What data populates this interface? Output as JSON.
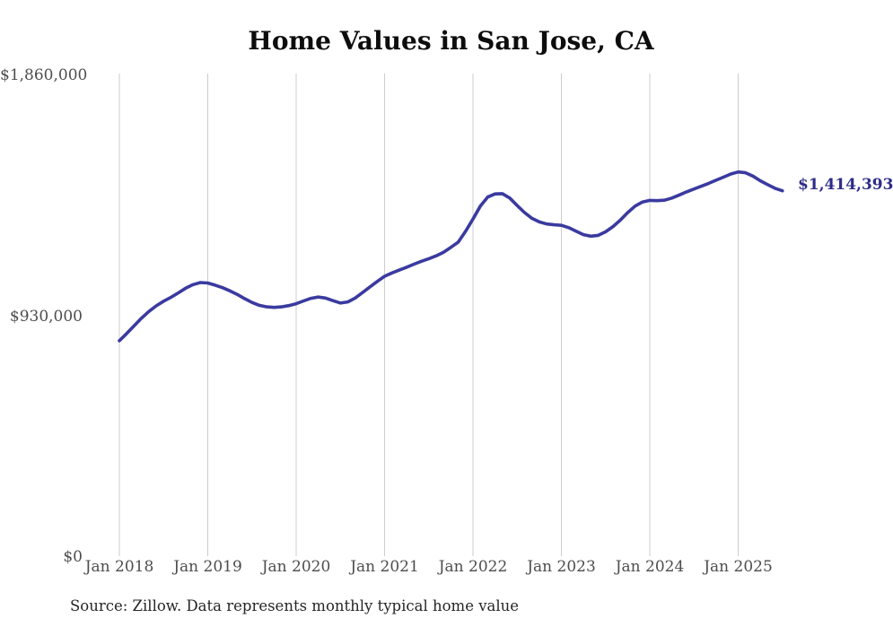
{
  "page": {
    "title": "Home Values in San Jose, CA",
    "source": "Source: Zillow. Data represents monthly typical home value",
    "end_label": "$1,414,393"
  },
  "colors": {
    "line": "#3a3aa0",
    "annotation": "#2d2d8a",
    "grid": "#cccccc",
    "axis_text": "#4d4d4d",
    "title_text": "#0d0d0d",
    "source_text": "#262626",
    "background": "#ffffff"
  },
  "chart_data": {
    "type": "line",
    "title": "Home Values in San Jose, CA",
    "xlabel": "",
    "ylabel": "",
    "ylim": [
      0,
      1860000
    ],
    "grid": "vertical-only",
    "legend": "none",
    "series_name": "Typical home value (USD)",
    "latest_value": 1414393,
    "end_annotation": "$1,414,393",
    "y_ticks": [
      {
        "label": "$0",
        "value": 0
      },
      {
        "label": "$930,000",
        "value": 930000
      },
      {
        "label": "$1,860,000",
        "value": 1860000
      }
    ],
    "x_ticks": [
      {
        "label": "Jan 2018",
        "month_index": 0
      },
      {
        "label": "Jan 2019",
        "month_index": 12
      },
      {
        "label": "Jan 2020",
        "month_index": 24
      },
      {
        "label": "Jan 2021",
        "month_index": 36
      },
      {
        "label": "Jan 2022",
        "month_index": 48
      },
      {
        "label": "Jan 2023",
        "month_index": 60
      },
      {
        "label": "Jan 2024",
        "month_index": 72
      },
      {
        "label": "Jan 2025",
        "month_index": 84
      }
    ],
    "x": [
      "2018-01",
      "2018-02",
      "2018-03",
      "2018-04",
      "2018-05",
      "2018-06",
      "2018-07",
      "2018-08",
      "2018-09",
      "2018-10",
      "2018-11",
      "2018-12",
      "2019-01",
      "2019-02",
      "2019-03",
      "2019-04",
      "2019-05",
      "2019-06",
      "2019-07",
      "2019-08",
      "2019-09",
      "2019-10",
      "2019-11",
      "2019-12",
      "2020-01",
      "2020-02",
      "2020-03",
      "2020-04",
      "2020-05",
      "2020-06",
      "2020-07",
      "2020-08",
      "2020-09",
      "2020-10",
      "2020-11",
      "2020-12",
      "2021-01",
      "2021-02",
      "2021-03",
      "2021-04",
      "2021-05",
      "2021-06",
      "2021-07",
      "2021-08",
      "2021-09",
      "2021-10",
      "2021-11",
      "2021-12",
      "2022-01",
      "2022-02",
      "2022-03",
      "2022-04",
      "2022-05",
      "2022-06",
      "2022-07",
      "2022-08",
      "2022-09",
      "2022-10",
      "2022-11",
      "2022-12",
      "2023-01",
      "2023-02",
      "2023-03",
      "2023-04",
      "2023-05",
      "2023-06",
      "2023-07",
      "2023-08",
      "2023-09",
      "2023-10",
      "2023-11",
      "2023-12",
      "2024-01",
      "2024-02",
      "2024-03",
      "2024-04",
      "2024-05",
      "2024-06",
      "2024-07",
      "2024-08",
      "2024-09",
      "2024-10",
      "2024-11",
      "2024-12",
      "2025-01",
      "2025-02",
      "2025-03",
      "2025-04",
      "2025-05",
      "2025-06",
      "2025-07"
    ],
    "values": [
      835000,
      863000,
      893000,
      922000,
      948000,
      970000,
      988000,
      1003000,
      1020000,
      1038000,
      1052000,
      1060000,
      1058000,
      1050000,
      1040000,
      1028000,
      1014000,
      998000,
      983000,
      972000,
      966000,
      964000,
      966000,
      971000,
      978000,
      989000,
      999000,
      1004000,
      1000000,
      990000,
      981000,
      985000,
      1000000,
      1021000,
      1043000,
      1064000,
      1084000,
      1097000,
      1108000,
      1119000,
      1131000,
      1142000,
      1152000,
      1163000,
      1177000,
      1196000,
      1216000,
      1258000,
      1305000,
      1355000,
      1390000,
      1402000,
      1403000,
      1386000,
      1357000,
      1330000,
      1308000,
      1294000,
      1286000,
      1283000,
      1281000,
      1272000,
      1258000,
      1245000,
      1239000,
      1242000,
      1256000,
      1276000,
      1301000,
      1330000,
      1355000,
      1371000,
      1377000,
      1376000,
      1378000,
      1386000,
      1398000,
      1410000,
      1421000,
      1432000,
      1443000,
      1455000,
      1467000,
      1479000,
      1487000,
      1484000,
      1471000,
      1453000,
      1438000,
      1424000,
      1414393
    ]
  }
}
